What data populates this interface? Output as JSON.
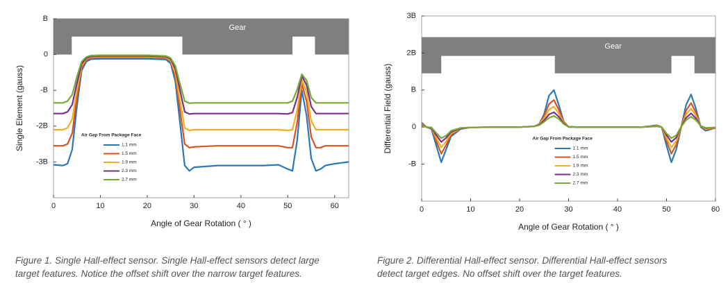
{
  "chart_data": [
    {
      "type": "line",
      "y_label": "Single Element (gauss)",
      "x_label": "Angle of Gear Rotation ( ° )",
      "caption": "Figure 1. Single Hall-effect sensor. Single Hall-effect sensors detect large target features. Notice the offset shift over the narrow target features.",
      "gear": {
        "label": "Gear",
        "top": 1,
        "tooth": 0,
        "gap": 0.5,
        "edges": [
          3.9,
          27.5,
          51,
          55.8
        ]
      },
      "legend_title": "Air Gap From Package Face",
      "legend": "lower-left",
      "xlim": [
        0,
        63
      ],
      "ylim": [
        -4,
        1
      ],
      "xticks": [
        0,
        10,
        20,
        30,
        40,
        50,
        60
      ],
      "yticks": [
        {
          "value": 1,
          "label": "B"
        },
        0,
        {
          "value": -1,
          "label": "-B"
        },
        {
          "value": -2,
          "label": "-2B"
        },
        {
          "value": -3,
          "label": "-3B"
        }
      ],
      "x": [
        0,
        2,
        3,
        4,
        5,
        6,
        7,
        8,
        10,
        15,
        20,
        24,
        25,
        26,
        27,
        28,
        29,
        30,
        35,
        40,
        45,
        48,
        50,
        51,
        52,
        53,
        54,
        55,
        56,
        57,
        58,
        60,
        63
      ],
      "series": [
        {
          "name": "1.1 mm",
          "color": "#2a78b8",
          "values": [
            -3.08,
            -3.1,
            -3.05,
            -2.65,
            -1.45,
            -0.45,
            -0.2,
            -0.13,
            -0.12,
            -0.12,
            -0.12,
            -0.14,
            -0.25,
            -0.75,
            -1.9,
            -3.1,
            -3.25,
            -3.15,
            -3.1,
            -3.1,
            -3.1,
            -3.08,
            -3.2,
            -3.25,
            -2.4,
            -1.0,
            -1.7,
            -2.9,
            -3.25,
            -3.2,
            -3.1,
            -3.05,
            -3.0
          ]
        },
        {
          "name": "1.5 mm",
          "color": "#d7531f",
          "values": [
            -2.55,
            -2.55,
            -2.5,
            -2.2,
            -1.2,
            -0.38,
            -0.15,
            -0.09,
            -0.08,
            -0.08,
            -0.08,
            -0.1,
            -0.2,
            -0.62,
            -1.55,
            -2.5,
            -2.6,
            -2.58,
            -2.55,
            -2.55,
            -2.55,
            -2.55,
            -2.6,
            -2.6,
            -1.9,
            -0.82,
            -1.3,
            -2.3,
            -2.6,
            -2.6,
            -2.55,
            -2.55,
            -2.55
          ]
        },
        {
          "name": "1.9 mm",
          "color": "#eeb022",
          "values": [
            -2.1,
            -2.1,
            -2.05,
            -1.8,
            -1.0,
            -0.32,
            -0.12,
            -0.07,
            -0.06,
            -0.06,
            -0.06,
            -0.08,
            -0.17,
            -0.52,
            -1.28,
            -2.05,
            -2.12,
            -2.1,
            -2.1,
            -2.1,
            -2.1,
            -2.1,
            -2.12,
            -2.1,
            -1.55,
            -0.7,
            -1.05,
            -1.85,
            -2.1,
            -2.1,
            -2.1,
            -2.1,
            -2.1
          ]
        },
        {
          "name": "2.3 mm",
          "color": "#7c2e8e",
          "values": [
            -1.65,
            -1.65,
            -1.6,
            -1.4,
            -0.8,
            -0.26,
            -0.1,
            -0.05,
            -0.04,
            -0.04,
            -0.04,
            -0.06,
            -0.13,
            -0.4,
            -1.0,
            -1.6,
            -1.66,
            -1.65,
            -1.65,
            -1.65,
            -1.65,
            -1.65,
            -1.66,
            -1.62,
            -1.2,
            -0.6,
            -0.85,
            -1.45,
            -1.65,
            -1.65,
            -1.65,
            -1.65,
            -1.65
          ]
        },
        {
          "name": "2.7 mm",
          "color": "#76ab32",
          "values": [
            -1.35,
            -1.35,
            -1.3,
            -1.12,
            -0.62,
            -0.2,
            -0.07,
            -0.03,
            -0.02,
            -0.02,
            -0.02,
            -0.04,
            -0.1,
            -0.32,
            -0.82,
            -1.3,
            -1.36,
            -1.35,
            -1.35,
            -1.35,
            -1.35,
            -1.35,
            -1.35,
            -1.3,
            -0.98,
            -0.55,
            -0.72,
            -1.2,
            -1.35,
            -1.35,
            -1.35,
            -1.35,
            -1.35
          ]
        }
      ]
    },
    {
      "type": "line",
      "y_label": "Differential Field (gauss)",
      "x_label": "Angle of Gear Rotation ( ° )",
      "caption": "Figure 2. Differential Hall-effect sensor. Differential Hall-effect sensors detect target edges. No offset shift over the target features.",
      "gear": {
        "label": "Gear",
        "top": 2.43,
        "tooth": 1.45,
        "gap": 1.92,
        "edges": [
          4,
          27.2,
          51,
          55.7
        ]
      },
      "legend_title": "Air Gap From Package Face",
      "legend": "lower-center",
      "xlim": [
        0,
        60
      ],
      "ylim": [
        -2,
        3
      ],
      "xticks": [
        0,
        10,
        20,
        30,
        40,
        50,
        60
      ],
      "yticks": [
        {
          "value": 3,
          "label": "3B"
        },
        {
          "value": 2,
          "label": "2B"
        },
        {
          "value": 1,
          "label": "B"
        },
        0,
        {
          "value": -1,
          "label": "-B"
        }
      ],
      "x": [
        0,
        1,
        2,
        3,
        4,
        5,
        6,
        8,
        10,
        15,
        20,
        23,
        24,
        25,
        26,
        27,
        28,
        29,
        30,
        32,
        35,
        40,
        45,
        48,
        49,
        50,
        51,
        52,
        53,
        54,
        55,
        56,
        57,
        58,
        60
      ],
      "series": [
        {
          "name": "1.1 mm",
          "color": "#2a78b8",
          "values": [
            0.12,
            0,
            -0.05,
            -0.5,
            -0.95,
            -0.6,
            -0.25,
            -0.05,
            -0.01,
            0,
            0,
            0.02,
            0.08,
            0.35,
            0.85,
            1.0,
            0.6,
            0.15,
            0,
            0,
            0,
            0,
            0,
            0.05,
            0,
            -0.5,
            -0.95,
            -0.6,
            0,
            0.6,
            0.88,
            0.5,
            0,
            -0.1,
            -0.02
          ]
        },
        {
          "name": "1.5 mm",
          "color": "#d7531f",
          "values": [
            0.1,
            0,
            -0.03,
            -0.38,
            -0.72,
            -0.48,
            -0.2,
            -0.04,
            -0.01,
            0,
            0,
            0.02,
            0.08,
            0.3,
            0.62,
            0.73,
            0.47,
            0.14,
            0.01,
            0,
            0,
            0,
            0,
            0.04,
            0,
            -0.38,
            -0.72,
            -0.47,
            0,
            0.45,
            0.65,
            0.39,
            0.02,
            -0.07,
            -0.02
          ]
        },
        {
          "name": "1.9 mm",
          "color": "#eeb022",
          "values": [
            0.08,
            0,
            -0.02,
            -0.3,
            -0.55,
            -0.38,
            -0.17,
            -0.03,
            -0.01,
            0,
            0,
            0.02,
            0.07,
            0.24,
            0.47,
            0.55,
            0.37,
            0.12,
            0.01,
            0,
            0,
            0,
            0,
            0.03,
            0,
            -0.3,
            -0.55,
            -0.37,
            0.01,
            0.34,
            0.5,
            0.31,
            0.03,
            -0.05,
            -0.01
          ]
        },
        {
          "name": "2.3 mm",
          "color": "#7c2e8e",
          "values": [
            0.06,
            0,
            -0.02,
            -0.22,
            -0.4,
            -0.29,
            -0.13,
            -0.03,
            -0.01,
            0,
            0,
            0.02,
            0.06,
            0.18,
            0.34,
            0.4,
            0.28,
            0.1,
            0.01,
            0,
            0,
            0,
            0,
            0.02,
            0,
            -0.22,
            -0.4,
            -0.28,
            0.01,
            0.25,
            0.37,
            0.24,
            0.03,
            -0.03,
            -0.01
          ]
        },
        {
          "name": "2.7 mm",
          "color": "#76ab32",
          "values": [
            0.04,
            0,
            -0.01,
            -0.16,
            -0.3,
            -0.23,
            -0.1,
            -0.02,
            -0.01,
            0,
            0,
            0.02,
            0.05,
            0.14,
            0.25,
            0.3,
            0.22,
            0.08,
            0.01,
            0,
            0,
            0,
            0,
            0.02,
            0,
            -0.17,
            -0.3,
            -0.22,
            0.01,
            0.19,
            0.28,
            0.19,
            0.03,
            -0.02,
            -0.01
          ]
        }
      ]
    }
  ]
}
